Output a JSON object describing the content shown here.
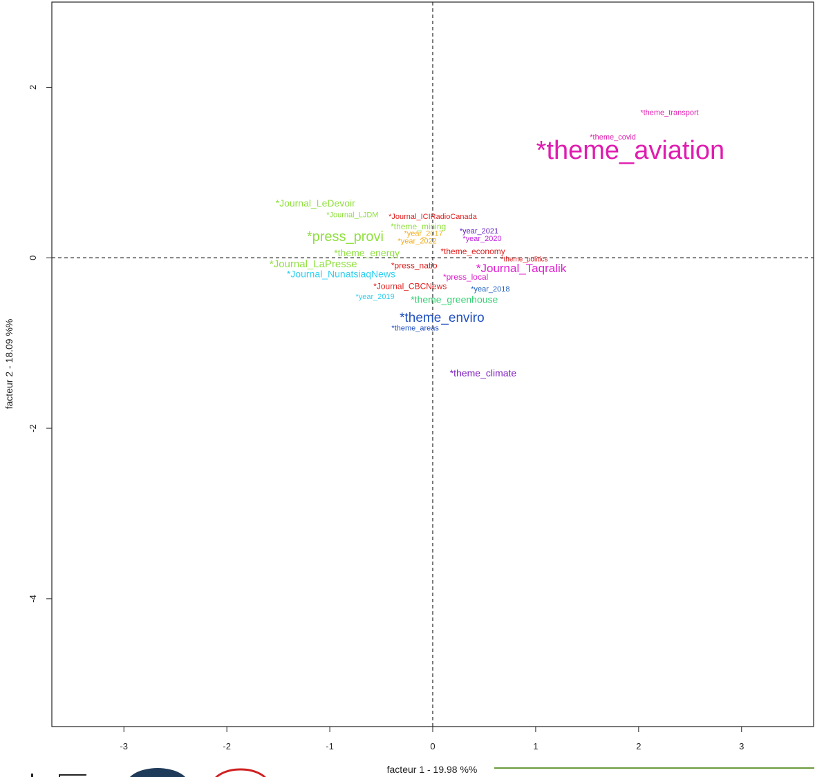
{
  "chart_data": {
    "type": "scatter",
    "xlabel": "facteur  1  - 19.98 %%",
    "ylabel": "facteur  2  - 18.09 %%",
    "xlim": [
      -3.7,
      3.7
    ],
    "ylim": [
      -5.5,
      3.0
    ],
    "x_ticks": [
      -3,
      -2,
      -1,
      0,
      1,
      2,
      3
    ],
    "y_ticks": [
      -4,
      -2,
      0,
      2
    ],
    "grid": false,
    "reference_lines": [
      0,
      0
    ],
    "points": [
      {
        "label": "*theme_transport",
        "x": 2.3,
        "y": 1.7,
        "color": "#e020b0",
        "size": 11
      },
      {
        "label": "*theme_covid",
        "x": 1.75,
        "y": 1.41,
        "color": "#e020b0",
        "size": 11
      },
      {
        "label": "*theme_aviation",
        "x": 1.92,
        "y": 1.24,
        "color": "#e01cb0",
        "size": 38
      },
      {
        "label": "*Journal_LeDevoir",
        "x": -1.14,
        "y": 0.63,
        "color": "#90e040",
        "size": 14
      },
      {
        "label": "*Journal_LJDM",
        "x": -0.78,
        "y": 0.5,
        "color": "#90e040",
        "size": 11
      },
      {
        "label": "*Journal_ICIRadioCanada",
        "x": 0.0,
        "y": 0.48,
        "color": "#e02020",
        "size": 11
      },
      {
        "label": "*theme_mining",
        "x": -0.14,
        "y": 0.36,
        "color": "#90e040",
        "size": 12
      },
      {
        "label": "*press_provi",
        "x": -0.85,
        "y": 0.24,
        "color": "#90e040",
        "size": 20
      },
      {
        "label": "*year_2017",
        "x": -0.09,
        "y": 0.28,
        "color": "#f0b020",
        "size": 11
      },
      {
        "label": "*year_2022",
        "x": -0.15,
        "y": 0.19,
        "color": "#f0b020",
        "size": 11
      },
      {
        "label": "*year_2021",
        "x": 0.45,
        "y": 0.31,
        "color": "#6020c0",
        "size": 11
      },
      {
        "label": "*year_2020",
        "x": 0.48,
        "y": 0.22,
        "color": "#c020e0",
        "size": 11
      },
      {
        "label": "*theme_energy",
        "x": -0.64,
        "y": 0.05,
        "color": "#90e040",
        "size": 14
      },
      {
        "label": "*theme_economy",
        "x": 0.39,
        "y": 0.07,
        "color": "#e02020",
        "size": 12
      },
      {
        "label": "*theme_politics",
        "x": 0.89,
        "y": -0.02,
        "color": "#e02020",
        "size": 10
      },
      {
        "label": "*Journal_LaPresse",
        "x": -1.16,
        "y": -0.08,
        "color": "#90e040",
        "size": 15
      },
      {
        "label": "*press_natio",
        "x": -0.18,
        "y": -0.1,
        "color": "#e02020",
        "size": 12
      },
      {
        "label": "*Journal_Taqralik",
        "x": 0.86,
        "y": -0.13,
        "color": "#e020d0",
        "size": 17
      },
      {
        "label": "*Journal_NunatsiaqNews",
        "x": -0.89,
        "y": -0.2,
        "color": "#30d0f0",
        "size": 14
      },
      {
        "label": "*press_local",
        "x": 0.32,
        "y": -0.23,
        "color": "#e020d0",
        "size": 12
      },
      {
        "label": "*Journal_CBCNews",
        "x": -0.22,
        "y": -0.34,
        "color": "#e02020",
        "size": 12
      },
      {
        "label": "*year_2018",
        "x": 0.56,
        "y": -0.37,
        "color": "#2060c0",
        "size": 11
      },
      {
        "label": "*year_2019",
        "x": -0.56,
        "y": -0.46,
        "color": "#30d0f0",
        "size": 11
      },
      {
        "label": "*theme_greenhouse",
        "x": 0.21,
        "y": -0.5,
        "color": "#30d070",
        "size": 14
      },
      {
        "label": "*theme_enviro",
        "x": 0.09,
        "y": -0.71,
        "color": "#2050c0",
        "size": 19
      },
      {
        "label": "*theme_areas",
        "x": -0.17,
        "y": -0.83,
        "color": "#2050c0",
        "size": 11
      },
      {
        "label": "*theme_climate",
        "x": 0.49,
        "y": -1.36,
        "color": "#8020c0",
        "size": 14
      }
    ]
  }
}
